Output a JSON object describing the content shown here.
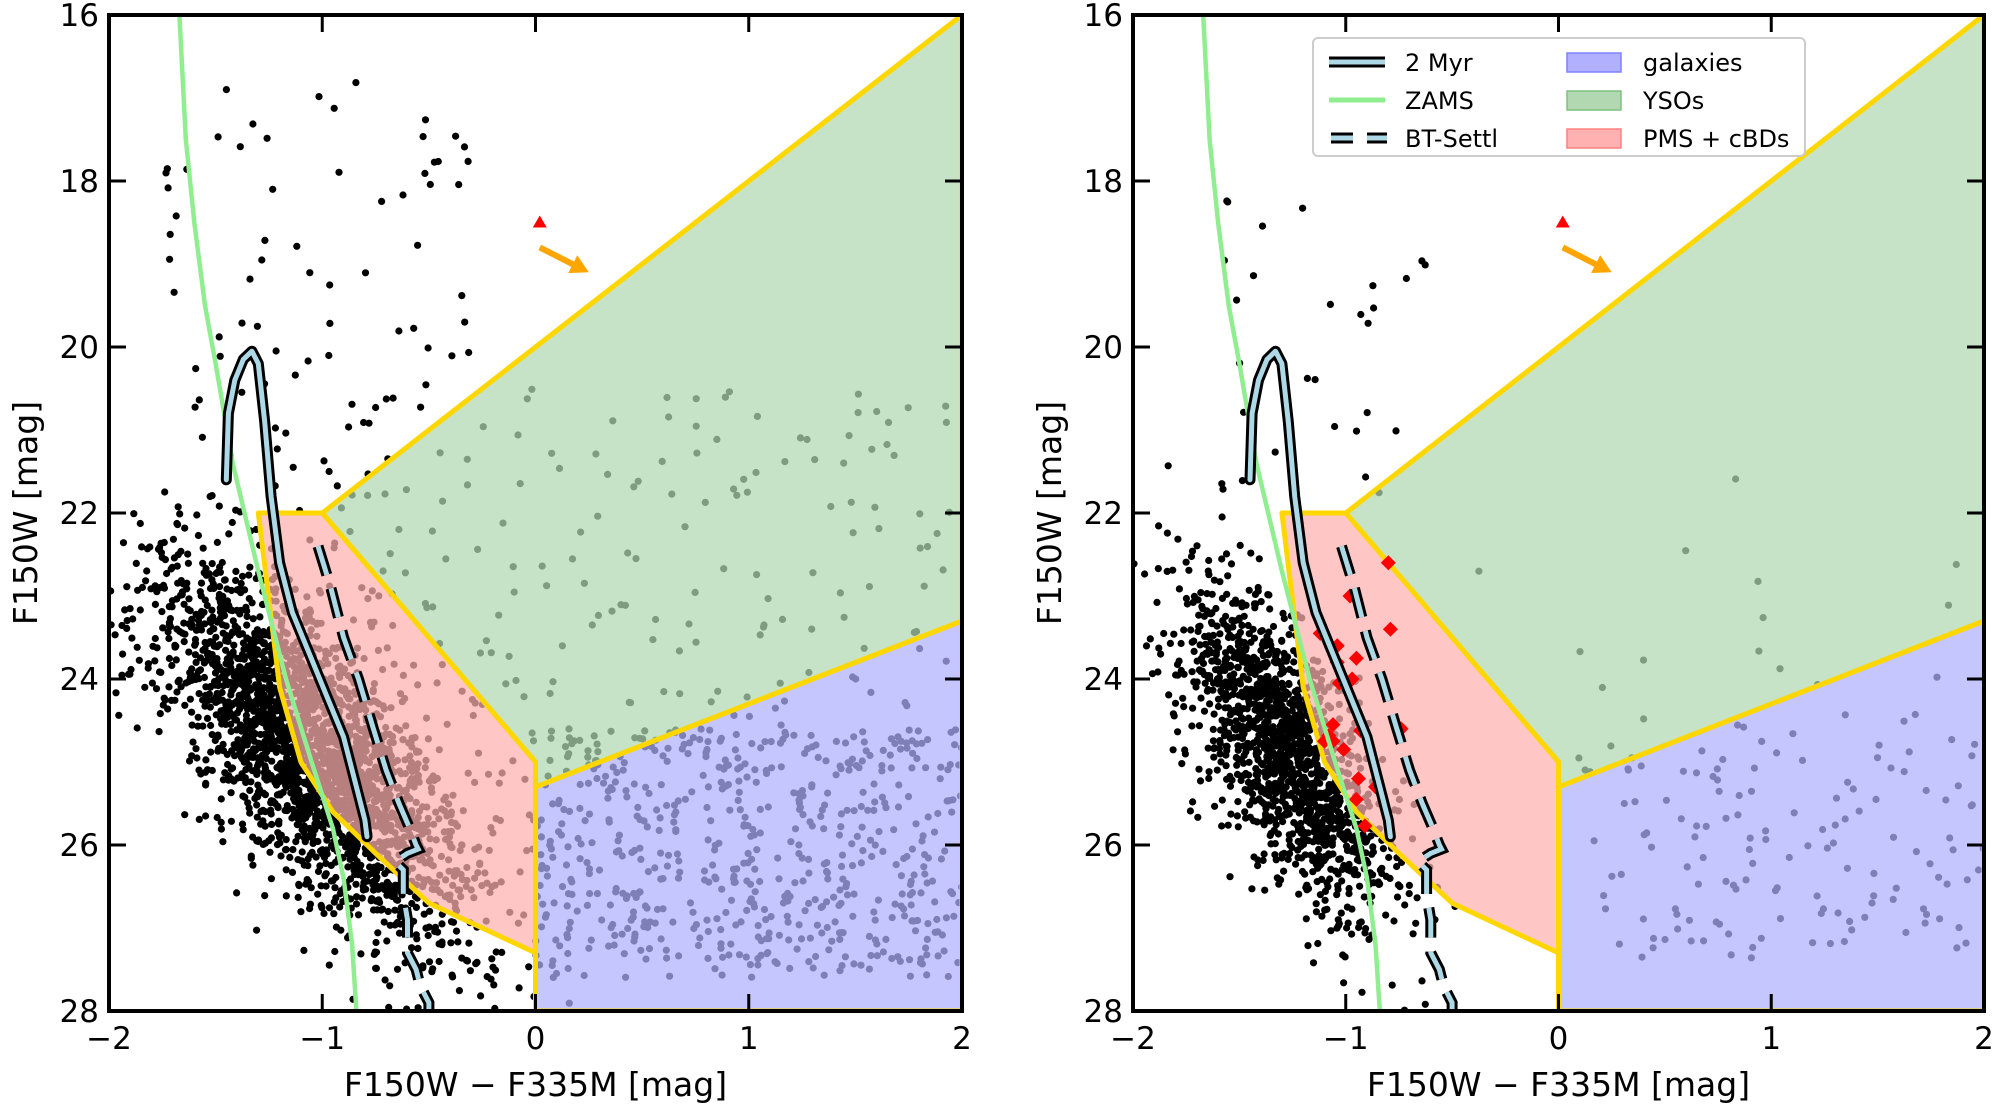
{
  "chart_data": [
    {
      "type": "scatter",
      "panel": "left",
      "title": "",
      "xlabel": "F150W − F335M [mag]",
      "ylabel": "F150W [mag]",
      "xlim": [
        -2,
        2
      ],
      "ylim": [
        28,
        16
      ],
      "y_inverted": true,
      "xticks": [
        -2,
        -1,
        0,
        1,
        2
      ],
      "xtick_labels": [
        "−2",
        "−1",
        "0",
        "1",
        "2"
      ],
      "yticks": [
        16,
        18,
        20,
        22,
        24,
        26,
        28
      ],
      "ytick_labels": [
        "16",
        "18",
        "20",
        "22",
        "24",
        "26",
        "28"
      ],
      "grid": false,
      "legend": null,
      "regions": [
        {
          "name": "galaxies",
          "color": "#b0b0ff",
          "vertices": [
            [
              0,
              25.3
            ],
            [
              2,
              23.3
            ],
            [
              2,
              28
            ],
            [
              0,
              28
            ]
          ]
        },
        {
          "name": "YSOs",
          "color": "#b2d8b2",
          "vertices": [
            [
              -1,
              22
            ],
            [
              2,
              16
            ],
            [
              2,
              23.3
            ],
            [
              0,
              25.3
            ],
            [
              0,
              25
            ],
            [
              -1,
              22
            ]
          ]
        },
        {
          "name": "PMS + cBDs",
          "color": "#ffb0b0",
          "vertices": [
            [
              -1.3,
              22
            ],
            [
              -1,
              22
            ],
            [
              0,
              25
            ],
            [
              0,
              27.3
            ],
            [
              -0.5,
              26.7
            ],
            [
              -0.75,
              26.1
            ],
            [
              -0.95,
              25.6
            ],
            [
              -1.1,
              25.0
            ],
            [
              -1.2,
              24.1
            ],
            [
              -1.3,
              22
            ]
          ]
        }
      ],
      "boundary_color": "#ffd700",
      "zams": {
        "name": "ZAMS",
        "color": "#90ee90",
        "x": [
          -1.67,
          -1.64,
          -1.6,
          -1.55,
          -1.5,
          -1.42,
          -1.3,
          -1.17,
          -1.05,
          -0.95,
          -0.9,
          -0.86,
          -0.84
        ],
        "y": [
          16,
          17.5,
          18.5,
          19.5,
          20.2,
          21.4,
          22.7,
          24.0,
          25.0,
          25.8,
          26.4,
          27.2,
          28
        ]
      },
      "isochrone": {
        "name": "2 Myr",
        "color": "#add8e6",
        "outline": "#000000",
        "x": [
          -1.45,
          -1.44,
          -1.41,
          -1.37,
          -1.33,
          -1.3,
          -1.27,
          -1.24,
          -1.2,
          -1.14,
          -1.06,
          -0.98,
          -0.9,
          -0.84,
          -0.8,
          -0.79
        ],
        "y": [
          21.6,
          20.8,
          20.4,
          20.15,
          20.05,
          20.2,
          20.9,
          21.8,
          22.6,
          23.2,
          23.7,
          24.2,
          24.7,
          25.3,
          25.7,
          25.9
        ]
      },
      "bt_settl": {
        "name": "BT-Settl",
        "color": "#add8e6",
        "outline": "#000000",
        "x": [
          -1.02,
          -0.96,
          -0.9,
          -0.83,
          -0.76,
          -0.7,
          -0.64,
          -0.59,
          -0.56,
          -0.55,
          -0.6,
          -0.66,
          -0.62,
          -0.62,
          -0.6,
          -0.6,
          -0.56,
          -0.54,
          -0.5,
          -0.5
        ],
        "y": [
          22.4,
          22.9,
          23.5,
          24.0,
          24.6,
          25.1,
          25.5,
          25.8,
          26.0,
          26.05,
          26.1,
          26.2,
          26.3,
          26.6,
          26.9,
          27.3,
          27.5,
          27.7,
          27.9,
          28
        ]
      },
      "reddening_vector": {
        "marker": "triangle",
        "marker_color": "#ff0000",
        "marker_at": [
          0.02,
          18.5
        ],
        "arrow_color": "#ffa500",
        "from": [
          0.02,
          18.8
        ],
        "to": [
          0.25,
          19.1
        ]
      },
      "point_color": "#000000",
      "scatter_groups": [
        {
          "label": "cluster sequence",
          "n": 2600,
          "seed": 11,
          "center_x": -1.05,
          "center_y": 24.9,
          "spread_x": 0.25,
          "spread_y": 1.1,
          "slope": 0.45
        },
        {
          "label": "red field",
          "n": 550,
          "seed": 23,
          "x_range": [
            0,
            2
          ],
          "y_range": [
            24.6,
            27.6
          ]
        },
        {
          "label": "YSO field",
          "n": 260,
          "seed": 37,
          "x_range": [
            -1,
            2
          ],
          "y_range": [
            20.5,
            26.5
          ]
        },
        {
          "label": "bright",
          "n": 80,
          "seed": 41,
          "x_range": [
            -1.75,
            -0.3
          ],
          "y_range": [
            16.8,
            22.0
          ]
        }
      ],
      "highlight_points": []
    },
    {
      "type": "scatter",
      "panel": "right",
      "title": "",
      "xlabel": "F150W − F335M [mag]",
      "ylabel": "F150W [mag]",
      "xlim": [
        -2,
        2
      ],
      "ylim": [
        28,
        16
      ],
      "y_inverted": true,
      "xticks": [
        -2,
        -1,
        0,
        1,
        2
      ],
      "xtick_labels": [
        "−2",
        "−1",
        "0",
        "1",
        "2"
      ],
      "yticks": [
        16,
        18,
        20,
        22,
        24,
        26,
        28
      ],
      "ytick_labels": [
        "16",
        "18",
        "20",
        "22",
        "24",
        "26",
        "28"
      ],
      "grid": false,
      "legend": {
        "placement": "top-right",
        "ncol": 2,
        "entries": [
          {
            "label": "2 Myr",
            "kind": "isochrone"
          },
          {
            "label": "ZAMS",
            "kind": "zams"
          },
          {
            "label": "BT-Settl",
            "kind": "bt_settl"
          },
          {
            "label": "galaxies",
            "kind": "patch",
            "color": "#b0b0ff",
            "edge": "#8080ff"
          },
          {
            "label": "YSOs",
            "kind": "patch",
            "color": "#b2d8b2",
            "edge": "#80c080"
          },
          {
            "label": "PMS + cBDs",
            "kind": "patch",
            "color": "#ffb0b0",
            "edge": "#ff8080"
          }
        ]
      },
      "point_color": "#000000",
      "scatter_groups": [
        {
          "label": "cluster sequence",
          "n": 1500,
          "seed": 53,
          "center_x": -1.28,
          "center_y": 24.9,
          "spread_x": 0.18,
          "spread_y": 1.0,
          "slope": 0.35
        },
        {
          "label": "red field",
          "n": 140,
          "seed": 61,
          "x_range": [
            0.05,
            2
          ],
          "y_range": [
            24.4,
            27.4
          ]
        },
        {
          "label": "YSO field",
          "n": 14,
          "seed": 71,
          "x_range": [
            -0.4,
            1.9
          ],
          "y_range": [
            21.3,
            25.2
          ]
        },
        {
          "label": "bright",
          "n": 30,
          "seed": 83,
          "x_range": [
            -1.6,
            -0.6
          ],
          "y_range": [
            18.2,
            22.0
          ]
        }
      ],
      "highlight_points": {
        "marker": "diamond",
        "color": "#ff0000",
        "points": [
          [
            -0.8,
            22.6
          ],
          [
            -0.98,
            23.0
          ],
          [
            -0.79,
            23.4
          ],
          [
            -1.12,
            23.45
          ],
          [
            -1.04,
            23.6
          ],
          [
            -1.04,
            23.8
          ],
          [
            -0.95,
            23.75
          ],
          [
            -0.97,
            24.0
          ],
          [
            -1.03,
            24.05
          ],
          [
            -1.06,
            24.55
          ],
          [
            -0.93,
            24.62
          ],
          [
            -0.74,
            24.6
          ],
          [
            -1.06,
            24.75
          ],
          [
            -1.1,
            24.75
          ],
          [
            -1.01,
            24.85
          ],
          [
            -0.94,
            25.2
          ],
          [
            -0.95,
            25.45
          ],
          [
            -0.91,
            25.77
          ],
          [
            -1.08,
            24.68
          ],
          [
            -0.86,
            25.3
          ]
        ]
      },
      "regions": [
        {
          "name": "galaxies",
          "color": "#b0b0ff",
          "vertices": [
            [
              0,
              25.3
            ],
            [
              2,
              23.3
            ],
            [
              2,
              28
            ],
            [
              0,
              28
            ]
          ]
        },
        {
          "name": "YSOs",
          "color": "#b2d8b2",
          "vertices": [
            [
              -1,
              22
            ],
            [
              2,
              16
            ],
            [
              2,
              23.3
            ],
            [
              0,
              25.3
            ],
            [
              0,
              25
            ],
            [
              -1,
              22
            ]
          ]
        },
        {
          "name": "PMS + cBDs",
          "color": "#ffb0b0",
          "vertices": [
            [
              -1.3,
              22
            ],
            [
              -1,
              22
            ],
            [
              0,
              25
            ],
            [
              0,
              27.3
            ],
            [
              -0.5,
              26.7
            ],
            [
              -0.75,
              26.1
            ],
            [
              -0.95,
              25.6
            ],
            [
              -1.1,
              25.0
            ],
            [
              -1.2,
              24.1
            ],
            [
              -1.3,
              22
            ]
          ]
        }
      ],
      "boundary_color": "#ffd700",
      "zams": {
        "name": "ZAMS",
        "color": "#90ee90",
        "x": [
          -1.67,
          -1.64,
          -1.6,
          -1.55,
          -1.5,
          -1.42,
          -1.3,
          -1.17,
          -1.05,
          -0.95,
          -0.9,
          -0.86,
          -0.84
        ],
        "y": [
          16,
          17.5,
          18.5,
          19.5,
          20.2,
          21.4,
          22.7,
          24.0,
          25.0,
          25.8,
          26.4,
          27.2,
          28
        ]
      },
      "isochrone": {
        "name": "2 Myr",
        "color": "#add8e6",
        "outline": "#000000",
        "x": [
          -1.45,
          -1.44,
          -1.41,
          -1.37,
          -1.33,
          -1.3,
          -1.27,
          -1.24,
          -1.2,
          -1.14,
          -1.06,
          -0.98,
          -0.9,
          -0.84,
          -0.8,
          -0.79
        ],
        "y": [
          21.6,
          20.8,
          20.4,
          20.15,
          20.05,
          20.2,
          20.9,
          21.8,
          22.6,
          23.2,
          23.7,
          24.2,
          24.7,
          25.3,
          25.7,
          25.9
        ]
      },
      "bt_settl": {
        "name": "BT-Settl",
        "color": "#add8e6",
        "outline": "#000000",
        "x": [
          -1.02,
          -0.96,
          -0.9,
          -0.83,
          -0.76,
          -0.7,
          -0.64,
          -0.59,
          -0.56,
          -0.55,
          -0.6,
          -0.66,
          -0.62,
          -0.62,
          -0.6,
          -0.6,
          -0.56,
          -0.54,
          -0.5,
          -0.5
        ],
        "y": [
          22.4,
          22.9,
          23.5,
          24.0,
          24.6,
          25.1,
          25.5,
          25.8,
          26.0,
          26.05,
          26.1,
          26.2,
          26.3,
          26.6,
          26.9,
          27.3,
          27.5,
          27.7,
          27.9,
          28
        ]
      },
      "reddening_vector": {
        "marker": "triangle",
        "marker_color": "#ff0000",
        "marker_at": [
          0.02,
          18.5
        ],
        "arrow_color": "#ffa500",
        "from": [
          0.02,
          18.8
        ],
        "to": [
          0.25,
          19.1
        ]
      }
    }
  ]
}
